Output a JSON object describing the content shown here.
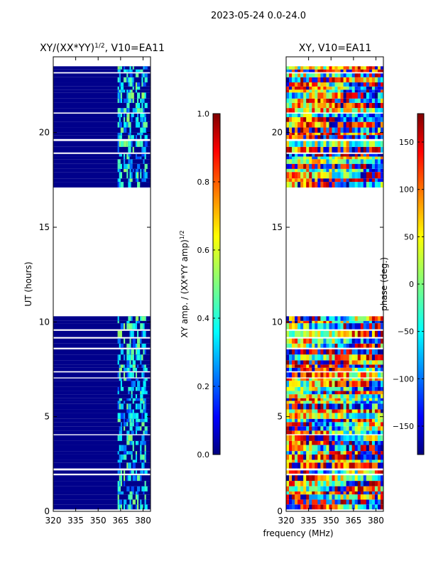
{
  "figure": {
    "suptitle": "2023-05-24 0.0-24.0"
  },
  "colors": {
    "background": "#ffffff",
    "dead_pixel": "#00008b",
    "jet": [
      "#00007f",
      "#0000ff",
      "#007fff",
      "#00ffff",
      "#7fff7f",
      "#ffff00",
      "#ff7f00",
      "#ff0000",
      "#7f0000"
    ]
  },
  "chart_data": [
    {
      "type": "heatmap",
      "title_main": "XY/(XX*YY)",
      "title_sup": "1/2",
      "title_suffix": ", V10=EA11",
      "xlabel": "frequency (MHz)",
      "ylabel": "UT (hours)",
      "xlim": [
        320,
        385
      ],
      "ylim": [
        0,
        24
      ],
      "xticks": [
        320,
        335,
        350,
        365,
        380
      ],
      "yticks": [
        0,
        5,
        10,
        15,
        20
      ],
      "colorbar": {
        "label_main": "XY amp. / (XX*YY amp)",
        "label_sup": "1/2",
        "range": [
          0.0,
          1.0
        ],
        "ticks": [
          "0.0",
          "0.2",
          "0.4",
          "0.6",
          "0.8",
          "1.0"
        ]
      },
      "data_ranges_hours": [
        [
          0.1,
          10.3
        ],
        [
          17.1,
          23.5
        ]
      ],
      "quantity": "normalized cross-correlation amplitude, mostly near 0 (dark blue) with bright channels between 363 and 382 MHz"
    },
    {
      "type": "heatmap",
      "title_main": "XY, V10=EA11",
      "xlabel": "frequency (MHz)",
      "xlim": [
        320,
        385
      ],
      "ylim": [
        0,
        24
      ],
      "xticks": [
        320,
        335,
        350,
        365,
        380
      ],
      "yticks": [
        0,
        5,
        10,
        15,
        20
      ],
      "colorbar": {
        "label_main": "phase (deg.)",
        "range": [
          -180,
          180
        ],
        "ticks": [
          "−150",
          "−100",
          "−50",
          "0",
          "50",
          "100",
          "150"
        ]
      },
      "data_ranges_hours": [
        [
          0.1,
          10.3
        ],
        [
          17.1,
          23.5
        ]
      ],
      "quantity": "cross-correlation phase spanning -180 to 180 degrees"
    }
  ]
}
